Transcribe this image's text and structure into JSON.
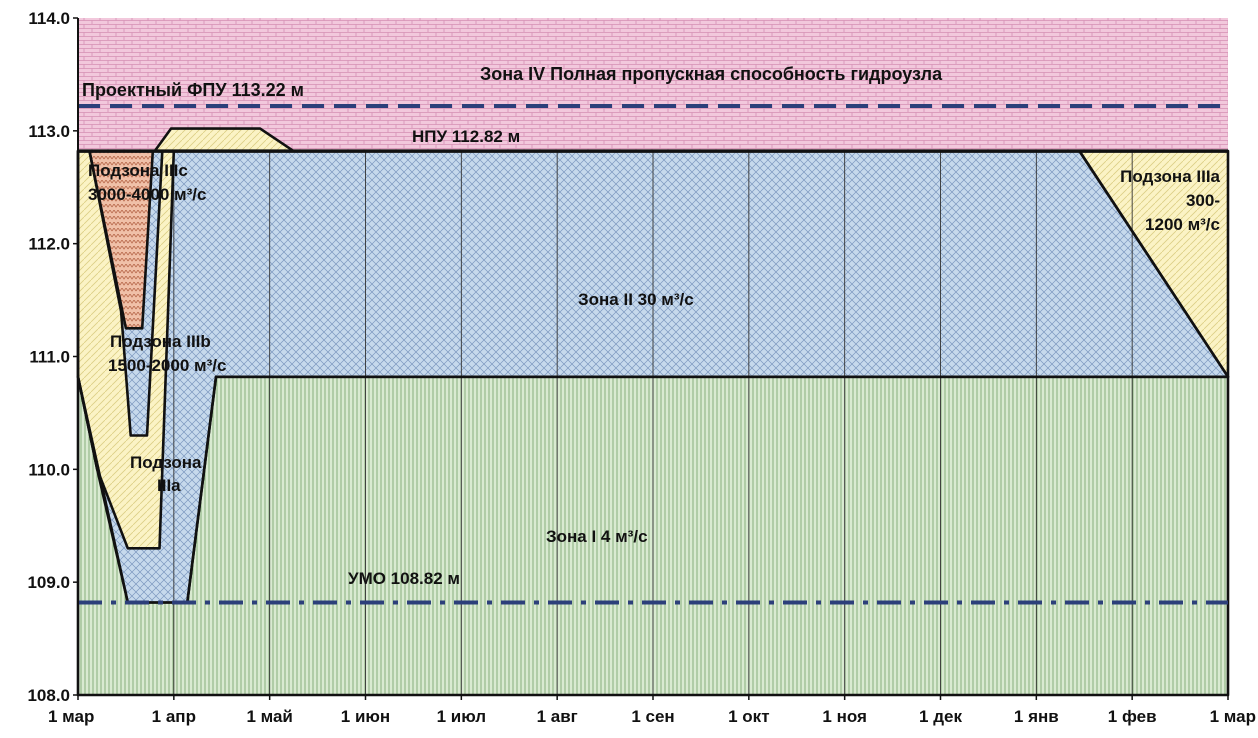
{
  "chart_data": {
    "type": "area",
    "x_ticks": [
      "1 мар",
      "1 апр",
      "1 май",
      "1 июн",
      "1 июл",
      "1 авг",
      "1 сен",
      "1 окт",
      "1 ноя",
      "1 дек",
      "1 янв",
      "1 фев",
      "1 мар"
    ],
    "y_ticks": [
      "108.0",
      "109.0",
      "110.0",
      "111.0",
      "112.0",
      "113.0",
      "114.0"
    ],
    "ylim": [
      108.0,
      114.0
    ],
    "x_unit": "months since 1 мар",
    "grid": false,
    "reference_lines": [
      {
        "label": "Проектный ФПУ 113.22 м",
        "y": 113.22,
        "style": "dashed",
        "color": "#2c3f7a"
      },
      {
        "label": "НПУ 112.82 м",
        "y": 112.82,
        "style": "solid",
        "color": "#111111"
      },
      {
        "label": "УМО 108.82 м",
        "y": 108.82,
        "style": "dash-dot",
        "color": "#2c3f7a"
      }
    ],
    "zones": [
      {
        "name": "Зона IV",
        "description": "Полная пропускная способность гидроузла",
        "fill": "#f2c8dc",
        "pattern": "brick",
        "polygon": [
          [
            0,
            114.0
          ],
          [
            12,
            114.0
          ],
          [
            12,
            112.82
          ],
          [
            0,
            112.82
          ]
        ]
      },
      {
        "name": "Зона II",
        "flow": "30 м³/с",
        "fill": "#c6d9ec",
        "pattern": "crosshatch",
        "polygon": [
          [
            0.97,
            112.82
          ],
          [
            10.45,
            112.82
          ],
          [
            12,
            110.82
          ],
          [
            1.44,
            110.82
          ],
          [
            1.14,
            108.82
          ],
          [
            0.52,
            108.82
          ],
          [
            0.2,
            110.0
          ],
          [
            0,
            110.82
          ],
          [
            0,
            112.82
          ]
        ]
      },
      {
        "name": "Зона I",
        "flow": "4 м³/с",
        "fill": "#d9ead1",
        "pattern": "vertical",
        "polygon": [
          [
            0,
            108.0
          ],
          [
            12,
            108.0
          ],
          [
            12,
            110.82
          ],
          [
            1.44,
            110.82
          ],
          [
            1.14,
            108.82
          ],
          [
            0.52,
            108.82
          ],
          [
            0,
            110.82
          ]
        ]
      },
      {
        "name": "Подзона IIIa",
        "flow": "300-1200 м³/с",
        "fill": "#fbf3c5",
        "pattern": "diagonal",
        "polygon": [
          [
            10.45,
            112.82
          ],
          [
            12,
            112.82
          ],
          [
            12,
            110.82
          ]
        ]
      },
      {
        "name": "Подзона IIIa",
        "flow": "",
        "fill": "#fbf3c5",
        "pattern": "diagonal",
        "polygon": [
          [
            0,
            110.82
          ],
          [
            0.2,
            110.0
          ],
          [
            0.52,
            109.3
          ],
          [
            0.85,
            109.3
          ],
          [
            1.0,
            112.82
          ],
          [
            0,
            112.82
          ]
        ]
      },
      {
        "name": "Подзона IIIb",
        "flow": "1500-2000 м³/с",
        "fill": "#c6d9ec",
        "pattern": "crosshatch",
        "polygon": [
          [
            0.12,
            112.82
          ],
          [
            0.45,
            111.4
          ],
          [
            0.55,
            110.3
          ],
          [
            0.72,
            110.3
          ],
          [
            0.88,
            112.82
          ]
        ]
      },
      {
        "name": "Подзона IIIc",
        "flow": "3000-4000 м³/с",
        "fill": "#f0c0a8",
        "pattern": "zigzag",
        "polygon": [
          [
            0.12,
            112.82
          ],
          [
            0.5,
            111.25
          ],
          [
            0.67,
            111.25
          ],
          [
            0.78,
            112.82
          ]
        ]
      },
      {
        "name": "",
        "flow": "",
        "fill": "#fbf3c5",
        "pattern": "diagonal",
        "polygon": [
          [
            0.8,
            112.82
          ],
          [
            0.97,
            113.02
          ],
          [
            1.9,
            113.02
          ],
          [
            2.25,
            112.82
          ]
        ]
      }
    ],
    "labels": {
      "zone4": "Зона IV  Полная пропускная способность гидроузла",
      "fpu": "Проектный ФПУ 113.22 м",
      "npu": "НПУ 112.82 м",
      "umo": "УМО 108.82 м",
      "zone2": "Зона II      30 м³/с",
      "zone1": "Зона I        4 м³/с",
      "sub3c_1": "Подзона IIIc",
      "sub3c_2": "3000-4000 м³/с",
      "sub3b_1": "Подзона IIIb",
      "sub3b_2": "1500-2000 м³/с",
      "sub3a_left_1": "Подзона",
      "sub3a_left_2": "IIIa",
      "sub3a_right_1": "Подзона IIIa",
      "sub3a_right_2": "300-",
      "sub3a_right_3": "1200 м³/с"
    }
  }
}
